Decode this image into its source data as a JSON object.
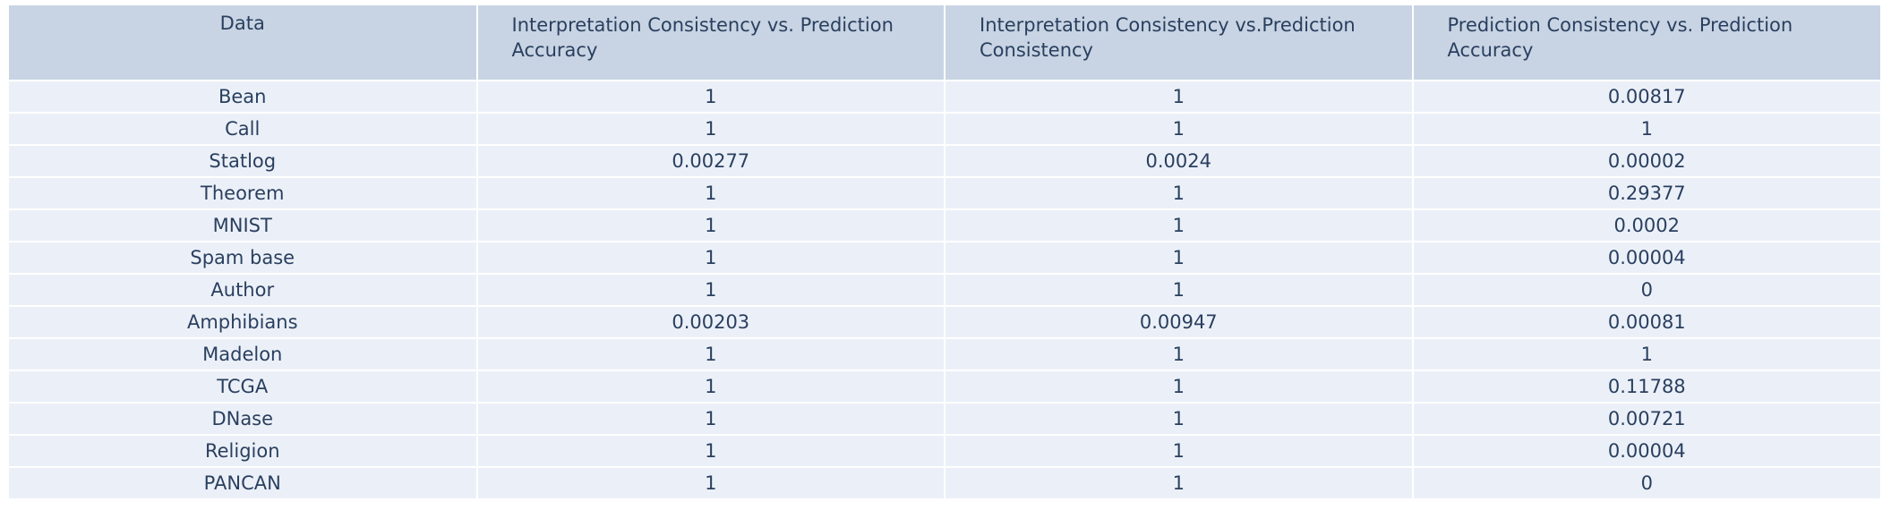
{
  "chart_data": {
    "type": "table",
    "columns": [
      "Data",
      "Interpretation Consistency vs. Prediction Accuracy",
      "Interpretation Consistency vs.Prediction Consistency",
      "Prediction Consistency vs.  Prediction Accuracy"
    ],
    "rows": [
      [
        "Bean",
        "1",
        "1",
        "0.00817"
      ],
      [
        "Call",
        "1",
        "1",
        "1"
      ],
      [
        "Statlog",
        "0.00277",
        "0.0024",
        "0.00002"
      ],
      [
        "Theorem",
        "1",
        "1",
        "0.29377"
      ],
      [
        "MNIST",
        "1",
        "1",
        "0.0002"
      ],
      [
        "Spam base",
        "1",
        "1",
        "0.00004"
      ],
      [
        "Author",
        "1",
        "1",
        "0"
      ],
      [
        "Amphibians",
        "0.00203",
        "0.00947",
        "0.00081"
      ],
      [
        "Madelon",
        "1",
        "1",
        "1"
      ],
      [
        "TCGA",
        "1",
        "1",
        "0.11788"
      ],
      [
        "DNase",
        "1",
        "1",
        "0.00721"
      ],
      [
        "Religion",
        "1",
        "1",
        "0.00004"
      ],
      [
        "PANCAN",
        "1",
        "1",
        "0"
      ]
    ],
    "header_fill": "#c8d4e3",
    "cell_fill": "#ebf0f8",
    "font_color": "#2a3f5f"
  }
}
